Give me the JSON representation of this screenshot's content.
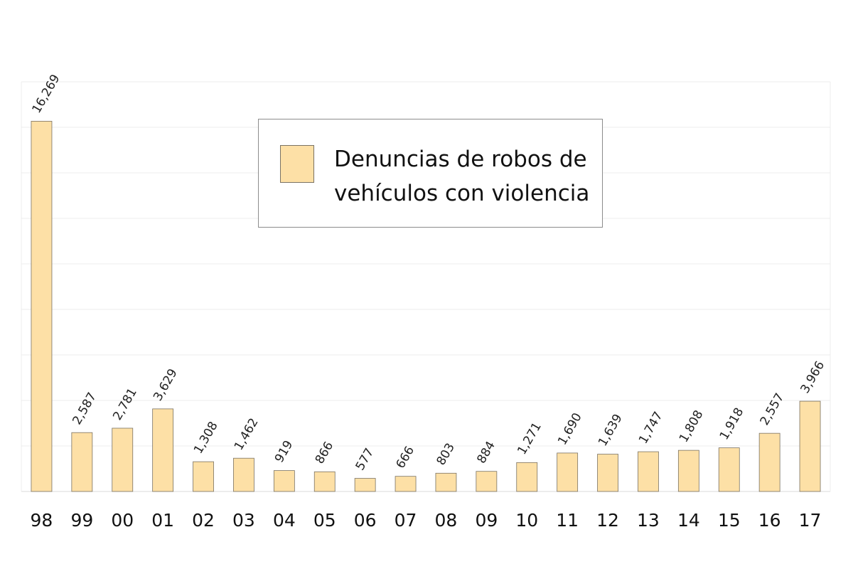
{
  "chart_data": {
    "type": "bar",
    "title": "",
    "xlabel": "",
    "ylabel": "",
    "categories": [
      "98",
      "99",
      "00",
      "01",
      "02",
      "03",
      "04",
      "05",
      "06",
      "07",
      "08",
      "09",
      "10",
      "11",
      "12",
      "13",
      "14",
      "15",
      "16",
      "17"
    ],
    "series": [
      {
        "name": "Denuncias de robos de vehículos con violencia",
        "values": [
          16269,
          2587,
          2781,
          3629,
          1308,
          1462,
          919,
          866,
          577,
          666,
          803,
          884,
          1271,
          1690,
          1639,
          1747,
          1808,
          1918,
          2557,
          3966
        ],
        "value_labels": [
          "16,269",
          "2,587",
          "2,781",
          "3,629",
          "1,308",
          "1,462",
          "919",
          "866",
          "577",
          "666",
          "803",
          "884",
          "1,271",
          "1,690",
          "1,639",
          "1,747",
          "1,808",
          "1,918",
          "2,557",
          "3,966"
        ],
        "color": "#fde0a6"
      }
    ],
    "ylim": [
      0,
      18000
    ],
    "grid": true,
    "legend_position": "top-center"
  },
  "legend": {
    "label": "Denuncias de robos de vehículos con violencia"
  }
}
